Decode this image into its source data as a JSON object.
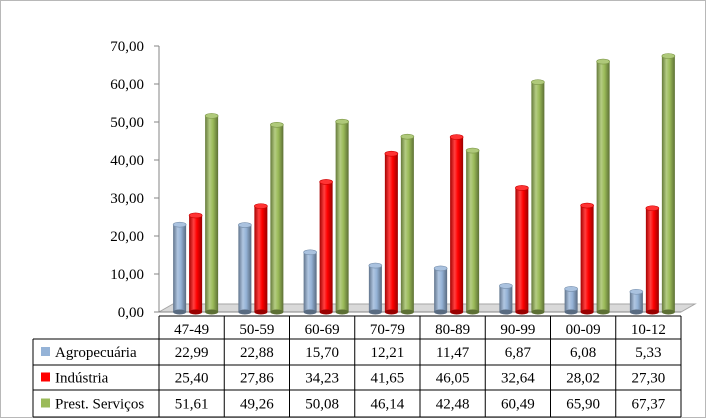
{
  "chart_data": {
    "type": "bar",
    "title": "",
    "xlabel": "",
    "ylabel": "",
    "ylim": [
      0,
      70
    ],
    "y_ticks": [
      "0,00",
      "10,00",
      "20,00",
      "30,00",
      "40,00",
      "50,00",
      "60,00",
      "70,00"
    ],
    "grid": false,
    "legend_placement": "data-table",
    "categories": [
      "47-49",
      "50-59",
      "60-69",
      "70-79",
      "80-89",
      "90-99",
      "00-09",
      "10-12"
    ],
    "series": [
      {
        "name": "Agropecuária",
        "color": "#95b3d7",
        "values": [
          22.99,
          22.88,
          15.7,
          12.21,
          11.47,
          6.87,
          6.08,
          5.33
        ],
        "labels": [
          "22,99",
          "22,88",
          "15,70",
          "12,21",
          "11,47",
          "6,87",
          "6,08",
          "5,33"
        ]
      },
      {
        "name": "Indústria",
        "color": "#ff0000",
        "values": [
          25.4,
          27.86,
          34.23,
          41.65,
          46.05,
          32.64,
          28.02,
          27.3
        ],
        "labels": [
          "25,40",
          "27,86",
          "34,23",
          "41,65",
          "46,05",
          "32,64",
          "28,02",
          "27,30"
        ]
      },
      {
        "name": "Prest. Serviços",
        "color": "#9bbb59",
        "values": [
          51.61,
          49.26,
          50.08,
          46.14,
          42.48,
          60.49,
          65.9,
          67.37
        ],
        "labels": [
          "51,61",
          "49,26",
          "50,08",
          "46,14",
          "42,48",
          "60,49",
          "65,90",
          "67,37"
        ]
      }
    ]
  }
}
